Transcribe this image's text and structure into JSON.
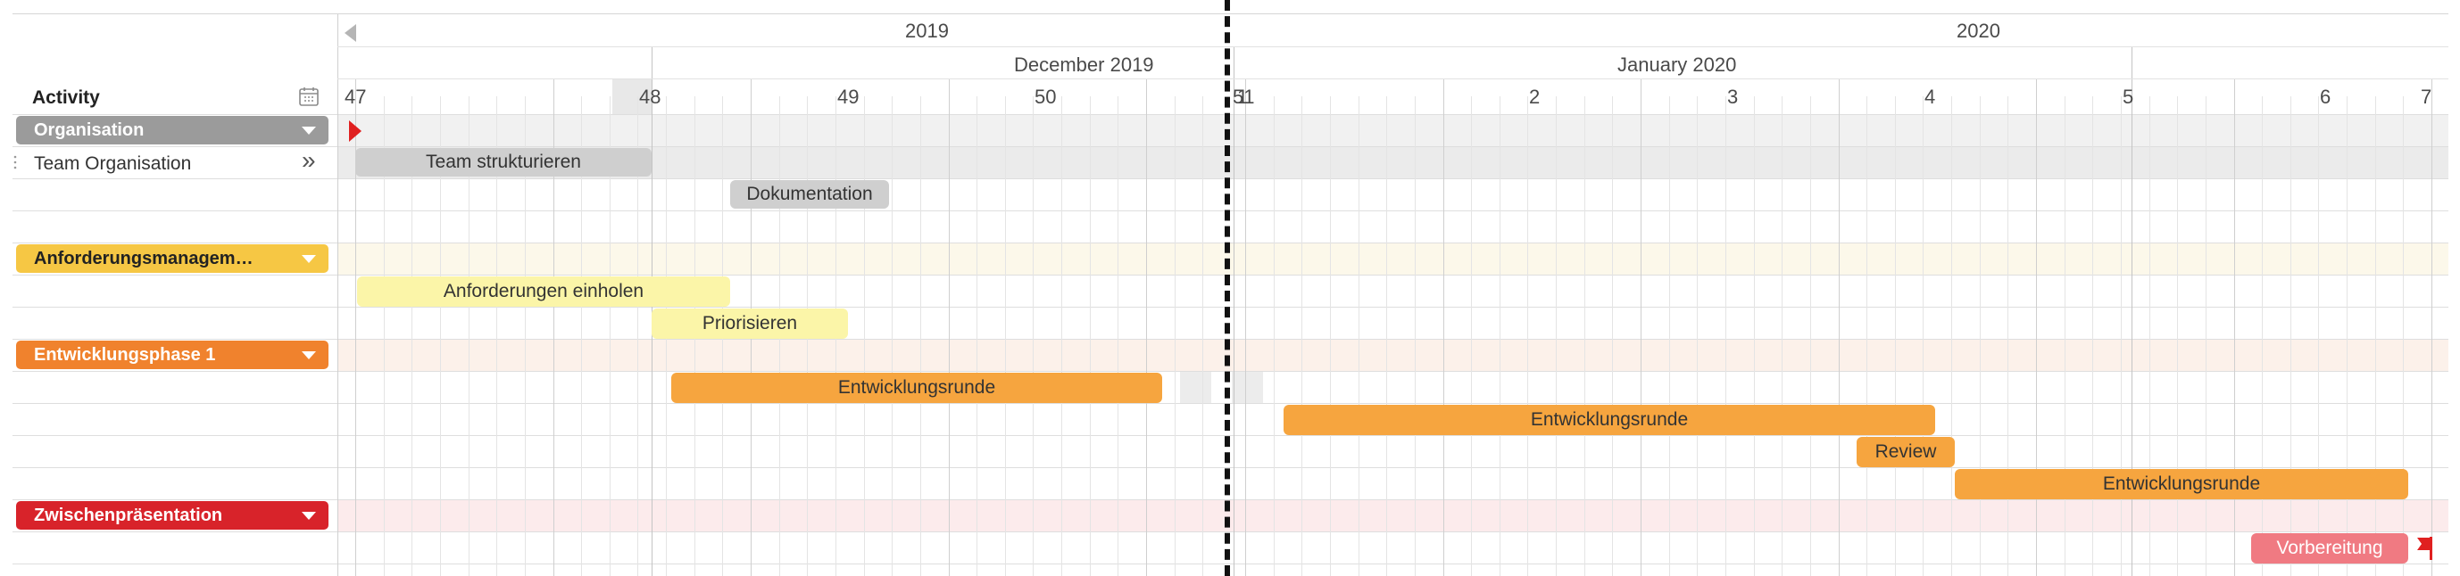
{
  "header": {
    "activity_label": "Activity",
    "year_left": "2019",
    "year_right": "2020",
    "month_left": "December 2019",
    "month_right": "January 2020",
    "weeks": [
      "47",
      "48",
      "49",
      "50",
      "51",
      "1",
      "2",
      "3",
      "4",
      "5",
      "6",
      "7"
    ]
  },
  "rows": {
    "organisation": {
      "label": "Organisation",
      "color": "#9b9b9b"
    },
    "team_organisation": {
      "label": "Team Organisation",
      "expand_glyph": "»"
    },
    "anforderungen": {
      "label": "Anforderungsmanagem…",
      "color": "#f6c744"
    },
    "entwicklung": {
      "label": "Entwicklungsphase 1",
      "color": "#f0822d"
    },
    "zwischen": {
      "label": "Zwischenpräsentation",
      "color": "#d8232a"
    }
  },
  "tasks": {
    "team_strukturieren": "Team strukturieren",
    "dokumentation": "Dokumentation",
    "anforderungen_einholen": "Anforderungen einholen",
    "priorisieren": "Priorisieren",
    "entwicklungsrunde_1": "Entwicklungsrunde",
    "entwicklungsrunde_2": "Entwicklungsrunde",
    "review": "Review",
    "entwicklungsrunde_3": "Entwicklungsrunde",
    "vorbereitung": "Vorbereitung"
  },
  "colors": {
    "milestone_red": "#e02020",
    "gray_bar": "#cfcfcf",
    "yellow_bar": "#fbf5a8",
    "orange_bar": "#f6a53f",
    "pink_bar": "#f07a82",
    "break_line": "#111111"
  },
  "icons": {
    "calendar": "calendar-icon",
    "scroll_left": "triangle-left-icon",
    "milestone_start": "triangle-right-icon",
    "flag": "flag-icon"
  }
}
